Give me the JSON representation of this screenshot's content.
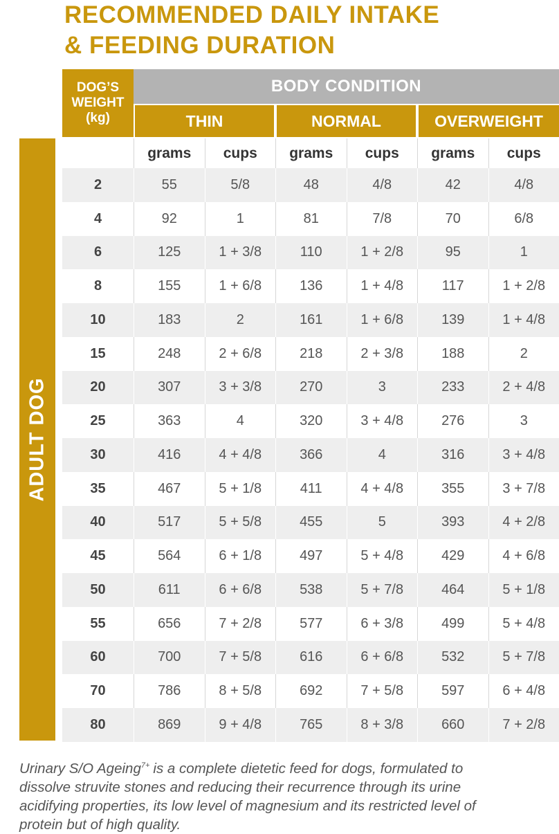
{
  "title": [
    "RECOMMENDED DAILY INTAKE",
    "& FEEDING DURATION"
  ],
  "table": {
    "weight_header": [
      "DOG’S",
      "WEIGHT",
      "(kg)"
    ],
    "group_header": "BODY CONDITION",
    "conditions": [
      "THIN",
      "NORMAL",
      "OVERWEIGHT"
    ],
    "units": [
      "grams",
      "cups",
      "grams",
      "cups",
      "grams",
      "cups"
    ],
    "side_label": "ADULT DOG",
    "rows": [
      [
        2,
        55,
        "5/8",
        48,
        "4/8",
        42,
        "4/8"
      ],
      [
        4,
        92,
        "1",
        81,
        "7/8",
        70,
        "6/8"
      ],
      [
        6,
        125,
        "1 + 3/8",
        110,
        "1 + 2/8",
        95,
        "1"
      ],
      [
        8,
        155,
        "1 + 6/8",
        136,
        "1 + 4/8",
        117,
        "1 + 2/8"
      ],
      [
        10,
        183,
        "2",
        161,
        "1 + 6/8",
        139,
        "1 + 4/8"
      ],
      [
        15,
        248,
        "2 + 6/8",
        218,
        "2 + 3/8",
        188,
        "2"
      ],
      [
        20,
        307,
        "3 + 3/8",
        270,
        "3",
        233,
        "2 + 4/8"
      ],
      [
        25,
        363,
        "4",
        320,
        "3 + 4/8",
        276,
        "3"
      ],
      [
        30,
        416,
        "4 + 4/8",
        366,
        "4",
        316,
        "3 + 4/8"
      ],
      [
        35,
        467,
        "5 + 1/8",
        411,
        "4 + 4/8",
        355,
        "3 + 7/8"
      ],
      [
        40,
        517,
        "5 + 5/8",
        455,
        "5",
        393,
        "4 + 2/8"
      ],
      [
        45,
        564,
        "6 + 1/8",
        497,
        "5 + 4/8",
        429,
        "4 + 6/8"
      ],
      [
        50,
        611,
        "6 + 6/8",
        538,
        "5 + 7/8",
        464,
        "5 + 1/8"
      ],
      [
        55,
        656,
        "7 + 2/8",
        577,
        "6 + 3/8",
        499,
        "5 + 4/8"
      ],
      [
        60,
        700,
        "7 + 5/8",
        616,
        "6 + 6/8",
        532,
        "5 + 7/8"
      ],
      [
        70,
        786,
        "8 + 5/8",
        692,
        "7 + 5/8",
        597,
        "6 + 4/8"
      ],
      [
        80,
        869,
        "9 + 4/8",
        765,
        "8 + 3/8",
        660,
        "7 + 2/8"
      ]
    ]
  },
  "footnote": {
    "product": "Urinary S/O Ageing",
    "superscript": "7+",
    "lines": [
      "is a complete dietetic feed for dogs, formulated to",
      "dissolve struvite stones and reducing their recurrence through its urine",
      "acidifying properties, its low level of magnesium and its restricted level of",
      "protein but of high quality."
    ]
  }
}
